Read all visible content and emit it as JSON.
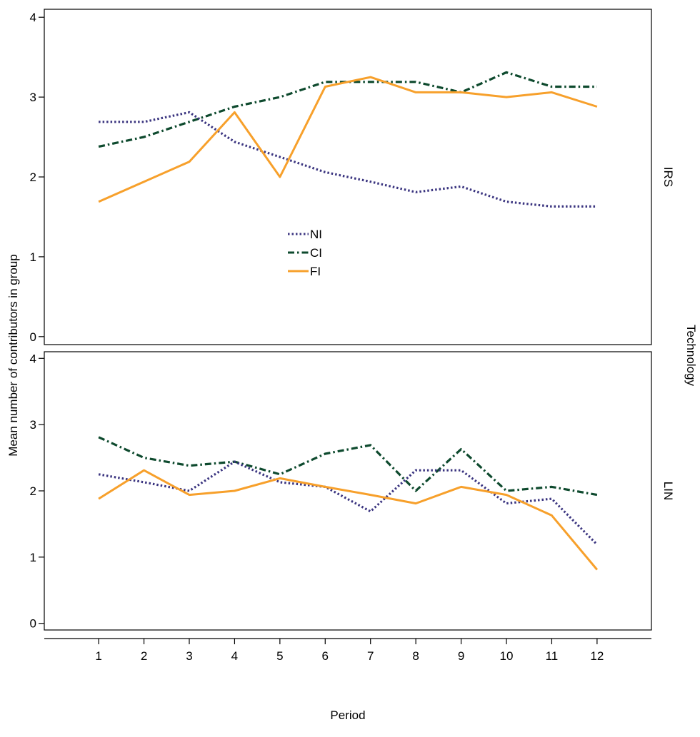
{
  "chart_data": {
    "type": "line",
    "xlabel": "Period",
    "ylabel": "Mean number of contributors in group",
    "facet_label": "Technology",
    "x": [
      1,
      2,
      3,
      4,
      5,
      6,
      7,
      8,
      9,
      10,
      11,
      12
    ],
    "x_ticks": [
      "1",
      "2",
      "3",
      "4",
      "5",
      "6",
      "7",
      "8",
      "9",
      "10",
      "11",
      "12"
    ],
    "xlim": [
      -0.2,
      13.2
    ],
    "ylim": [
      -0.1,
      4.1
    ],
    "y_ticks": [
      "0",
      "1",
      "2",
      "3",
      "4"
    ],
    "legend_placement": "inside top panel, center-left",
    "legend": [
      {
        "name": "NI",
        "color": "#3b3580",
        "style": "dotted"
      },
      {
        "name": "CI",
        "color": "#0e4a2e",
        "style": "dashdot"
      },
      {
        "name": "FI",
        "color": "#f7a02b",
        "style": "solid"
      }
    ],
    "panels": [
      {
        "strip": "IRS",
        "series": [
          {
            "name": "NI",
            "values": [
              2.69,
              2.69,
              2.81,
              2.44,
              2.25,
              2.06,
              1.94,
              1.81,
              1.88,
              1.69,
              1.63,
              1.63
            ]
          },
          {
            "name": "CI",
            "values": [
              2.38,
              2.5,
              2.69,
              2.88,
              3.0,
              3.19,
              3.19,
              3.19,
              3.06,
              3.31,
              3.13,
              3.13
            ]
          },
          {
            "name": "FI",
            "values": [
              1.69,
              1.94,
              2.19,
              2.81,
              2.0,
              3.13,
              3.25,
              3.06,
              3.06,
              3.0,
              3.06,
              2.88
            ]
          }
        ]
      },
      {
        "strip": "LIN",
        "series": [
          {
            "name": "NI",
            "values": [
              2.25,
              2.13,
              2.0,
              2.44,
              2.13,
              2.06,
              1.69,
              2.31,
              2.31,
              1.81,
              1.88,
              1.19
            ]
          },
          {
            "name": "CI",
            "values": [
              2.81,
              2.5,
              2.38,
              2.44,
              2.25,
              2.56,
              2.69,
              2.0,
              2.63,
              2.0,
              2.06,
              1.94
            ]
          },
          {
            "name": "FI",
            "values": [
              1.88,
              2.31,
              1.94,
              2.0,
              2.19,
              2.06,
              1.94,
              1.81,
              2.06,
              1.94,
              1.63,
              0.81
            ]
          }
        ]
      }
    ]
  }
}
